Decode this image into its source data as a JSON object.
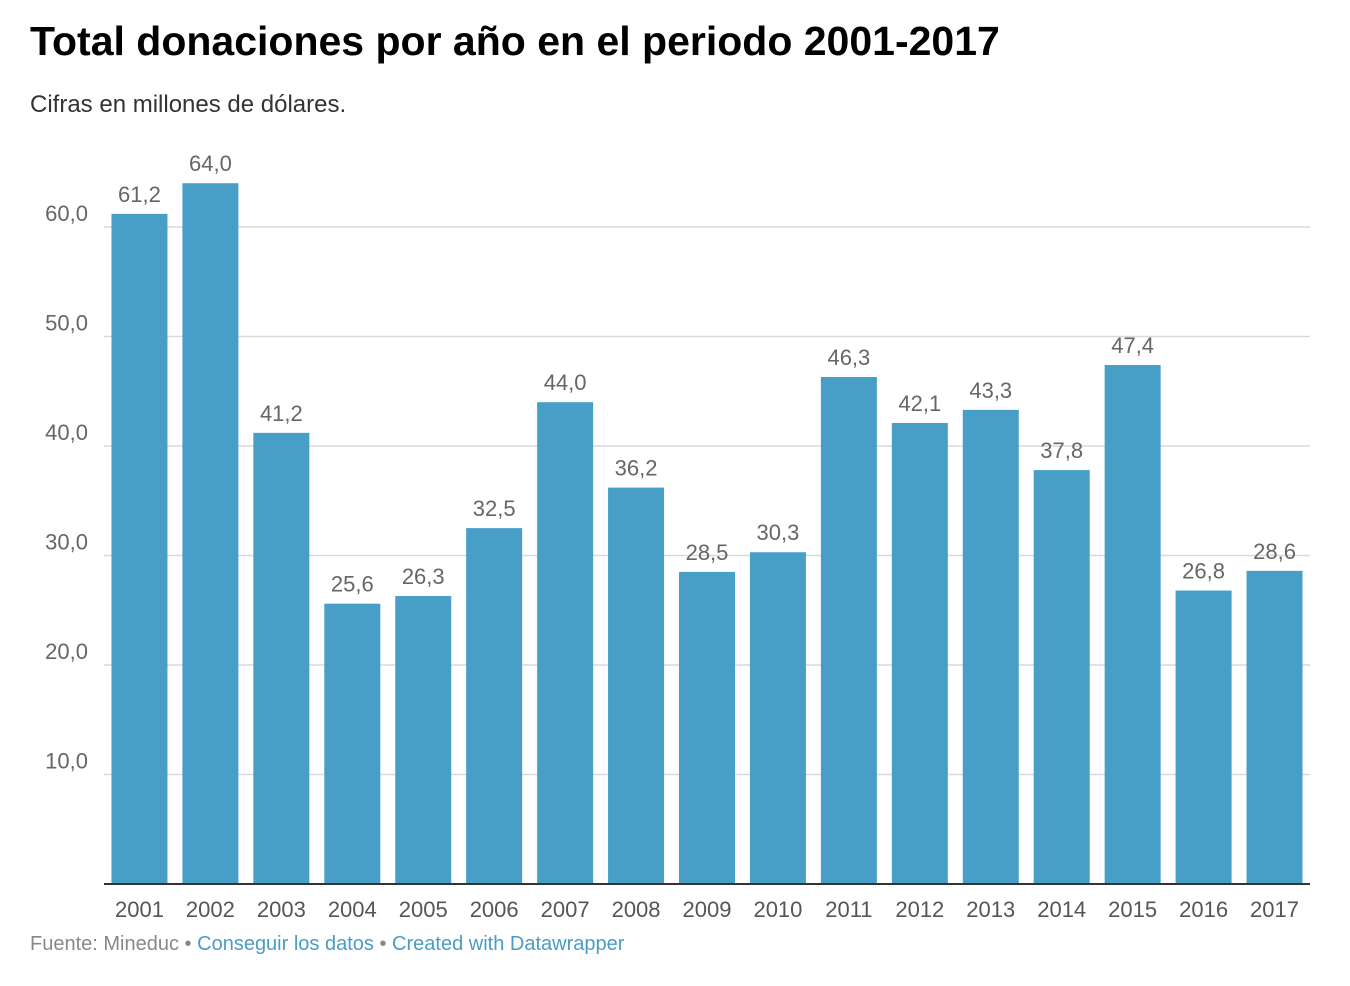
{
  "header": {
    "title": "Total donaciones por año en el periodo 2001-2017",
    "subtitle": "Cifras en millones de dólares."
  },
  "footer": {
    "source": "Fuente: Mineduc",
    "separator": "•",
    "data_link": "Conseguir los datos",
    "credit_link": "Created with Datawrapper"
  },
  "colors": {
    "bar": "#479fc8",
    "grid": "#d9d9d9",
    "axis": "#333333",
    "link": "#4a9cc8"
  },
  "chart_data": {
    "type": "bar",
    "title": "Total donaciones por año en el periodo 2001-2017",
    "subtitle": "Cifras en millones de dólares.",
    "categories": [
      "2001",
      "2002",
      "2003",
      "2004",
      "2005",
      "2006",
      "2007",
      "2008",
      "2009",
      "2010",
      "2011",
      "2012",
      "2013",
      "2014",
      "2015",
      "2016",
      "2017"
    ],
    "values": [
      61.2,
      64.0,
      41.2,
      25.6,
      26.3,
      32.5,
      44.0,
      36.2,
      28.5,
      30.3,
      46.3,
      42.1,
      43.3,
      37.8,
      47.4,
      26.8,
      28.6
    ],
    "value_labels": [
      "61,2",
      "64,0",
      "41,2",
      "25,6",
      "26,3",
      "32,5",
      "44,0",
      "36,2",
      "28,5",
      "30,3",
      "46,3",
      "42,1",
      "43,3",
      "37,8",
      "47,4",
      "26,8",
      "28,6"
    ],
    "yticks": [
      10,
      20,
      30,
      40,
      50,
      60
    ],
    "ytick_labels": [
      "10,0",
      "20,0",
      "30,0",
      "40,0",
      "50,0",
      "60,0"
    ],
    "ylim": [
      0,
      64
    ],
    "grid": true,
    "xlabel": "",
    "ylabel": ""
  }
}
